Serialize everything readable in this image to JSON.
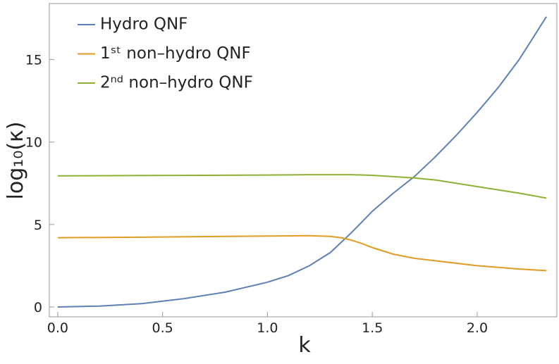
{
  "chart_data": {
    "type": "line",
    "xlabel": "k",
    "ylabel": "log₁₀(κ)",
    "xlim": [
      -0.04,
      2.38
    ],
    "ylim": [
      -0.6,
      18.4
    ],
    "xticks": [
      {
        "value": 0,
        "label": "0.0"
      },
      {
        "value": 0.5,
        "label": "0.5"
      },
      {
        "value": 1,
        "label": "1.0"
      },
      {
        "value": 1.5,
        "label": "1.5"
      },
      {
        "value": 2,
        "label": "2.0"
      }
    ],
    "yticks": [
      0,
      5,
      10,
      15
    ],
    "legend": "upper left",
    "series": [
      {
        "name": "Hydro QNF",
        "color": "#5e81b5",
        "x": [
          0,
          0.2,
          0.4,
          0.6,
          0.8,
          1.0,
          1.1,
          1.2,
          1.3,
          1.4,
          1.5,
          1.6,
          1.7,
          1.8,
          1.9,
          2.0,
          2.1,
          2.2,
          2.33
        ],
        "values": [
          0,
          0.05,
          0.2,
          0.5,
          0.9,
          1.5,
          1.9,
          2.5,
          3.3,
          4.5,
          5.8,
          6.9,
          7.9,
          9.1,
          10.4,
          11.8,
          13.3,
          15.0,
          17.6
        ]
      },
      {
        "name": "1ˢᵗ non–hydro QNF",
        "color": "#e19c24",
        "x": [
          0,
          0.4,
          0.8,
          1.0,
          1.2,
          1.3,
          1.35,
          1.4,
          1.45,
          1.5,
          1.6,
          1.7,
          1.8,
          2.0,
          2.2,
          2.33
        ],
        "values": [
          4.2,
          4.23,
          4.28,
          4.3,
          4.32,
          4.28,
          4.2,
          4.05,
          3.85,
          3.6,
          3.2,
          2.95,
          2.8,
          2.5,
          2.3,
          2.2
        ]
      },
      {
        "name": "2ⁿᵈ non–hydro QNF",
        "color": "#8fb032",
        "x": [
          0,
          0.4,
          0.8,
          1.0,
          1.2,
          1.4,
          1.5,
          1.6,
          1.7,
          1.8,
          2.0,
          2.2,
          2.33
        ],
        "values": [
          7.95,
          7.97,
          7.99,
          8.0,
          8.02,
          8.02,
          7.98,
          7.9,
          7.82,
          7.7,
          7.3,
          6.9,
          6.6
        ]
      }
    ]
  }
}
